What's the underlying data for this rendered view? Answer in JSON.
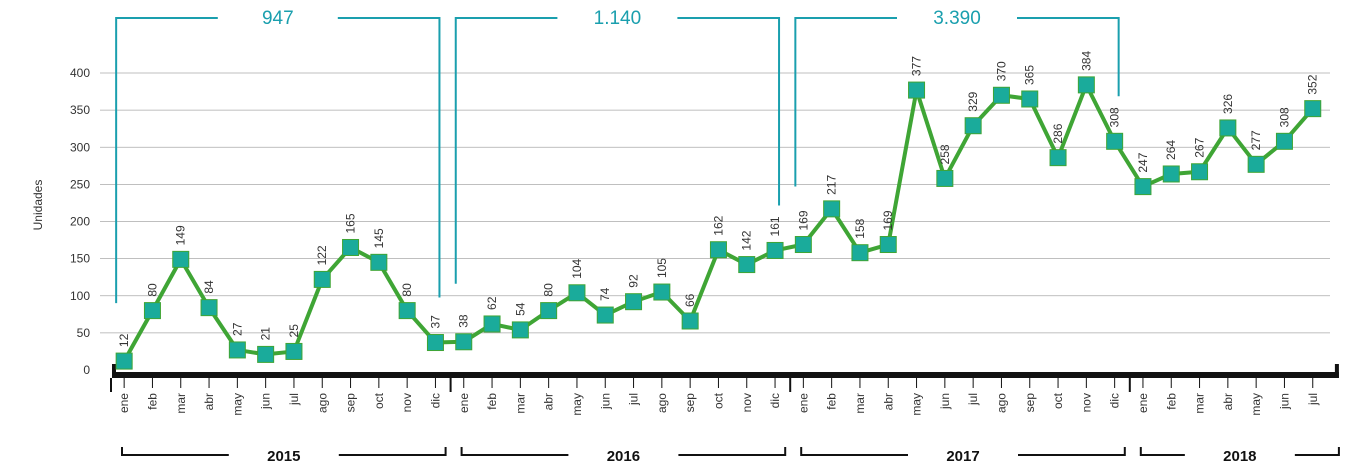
{
  "chart_data": {
    "type": "line",
    "y_label": "Unidades",
    "categories": [
      "ene",
      "feb",
      "mar",
      "abr",
      "may",
      "jun",
      "jul",
      "ago",
      "sep",
      "oct",
      "nov",
      "dic",
      "ene",
      "feb",
      "mar",
      "abr",
      "may",
      "jun",
      "jul",
      "ago",
      "sep",
      "oct",
      "nov",
      "dic",
      "ene",
      "feb",
      "mar",
      "abr",
      "may",
      "jun",
      "jul",
      "ago",
      "sep",
      "oct",
      "nov",
      "dic",
      "ene",
      "feb",
      "mar",
      "abr",
      "may",
      "jun",
      "jul"
    ],
    "years": [
      "2015",
      "2016",
      "2017",
      "2018"
    ],
    "annual_totals": [
      "947",
      "1.140",
      "3.390"
    ],
    "values": [
      12,
      80,
      149,
      84,
      27,
      21,
      25,
      122,
      165,
      145,
      80,
      37,
      38,
      62,
      54,
      80,
      104,
      74,
      92,
      105,
      66,
      162,
      142,
      161,
      169,
      217,
      158,
      169,
      377,
      258,
      329,
      370,
      365,
      286,
      384,
      308,
      247,
      264,
      267,
      326,
      277,
      308,
      352
    ],
    "color": "#3fa535",
    "marker_color": "#1aab9b",
    "total_color": "#1a9fae",
    "ylim": [
      0,
      400
    ],
    "yticks": [
      0,
      50,
      100,
      150,
      200,
      250,
      300,
      350,
      400
    ],
    "grid": true
  }
}
